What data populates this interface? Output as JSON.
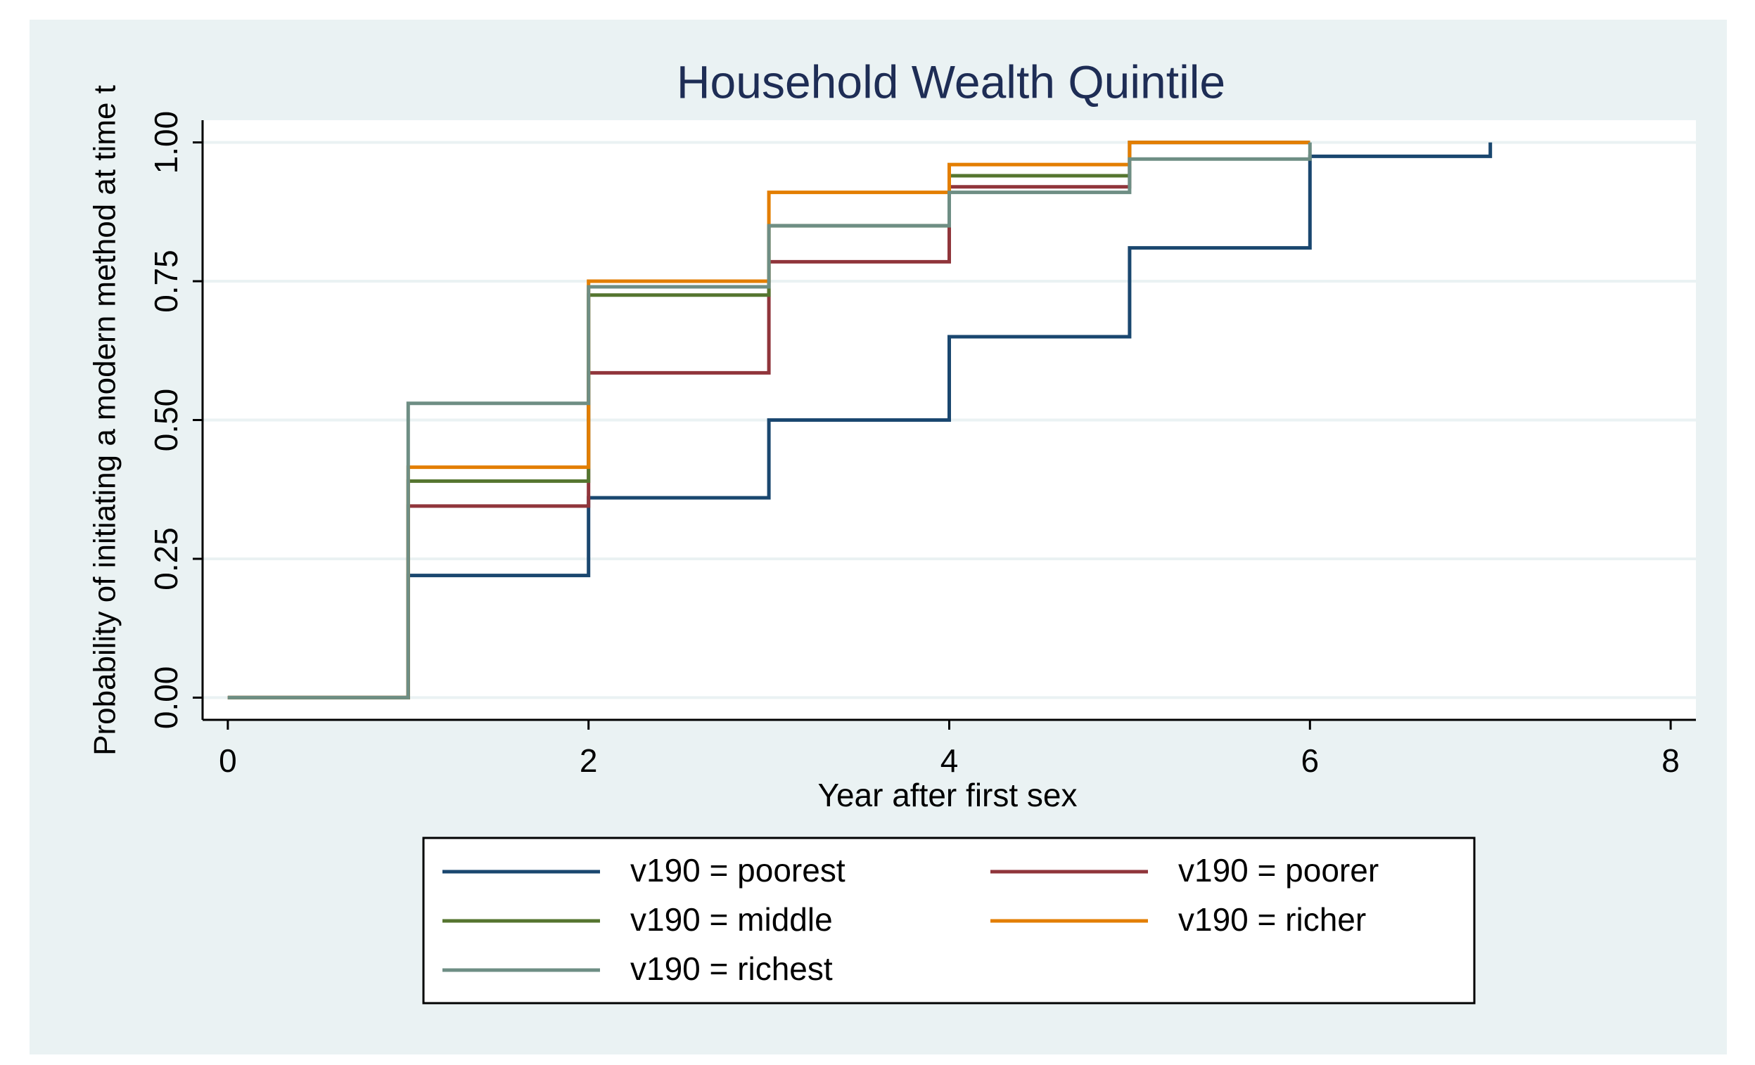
{
  "chart_data": {
    "type": "step",
    "title": "Household Wealth Quintile",
    "x_label": "Year after first sex",
    "y_label": "Probability of initiating a modern method at time t",
    "x": [
      0,
      1,
      2,
      3,
      4,
      5,
      6,
      7
    ],
    "series": [
      {
        "name": "v190 = poorest",
        "color": "#1a476f",
        "values": [
          0,
          0.22,
          0.36,
          0.5,
          0.65,
          0.81,
          0.975,
          1.0
        ]
      },
      {
        "name": "v190 = poorer",
        "color": "#90353b",
        "values": [
          0,
          0.345,
          0.585,
          0.785,
          0.92,
          1.0,
          1.0,
          null
        ]
      },
      {
        "name": "v190 = middle",
        "color": "#55752f",
        "values": [
          0,
          0.39,
          0.725,
          0.85,
          0.94,
          1.0,
          1.0,
          null
        ]
      },
      {
        "name": "v190 = richer",
        "color": "#e37e00",
        "values": [
          0,
          0.415,
          0.75,
          0.91,
          0.96,
          1.0,
          1.0,
          null
        ]
      },
      {
        "name": "v190 = richest",
        "color": "#6e8e84",
        "values": [
          0,
          0.53,
          0.74,
          0.85,
          0.91,
          0.97,
          1.0,
          null
        ]
      }
    ],
    "xlim": [
      -0.14,
      8.14
    ],
    "ylim": [
      -0.04,
      1.04
    ],
    "xticks": [
      0,
      2,
      4,
      6,
      8
    ],
    "yticks": [
      {
        "value": 0,
        "label": "0.00"
      },
      {
        "value": 0.25,
        "label": "0.25"
      },
      {
        "value": 0.5,
        "label": "0.50"
      },
      {
        "value": 0.75,
        "label": "0.75"
      },
      {
        "value": 1,
        "label": "1.00"
      }
    ],
    "grid": true,
    "legend": "bottom"
  }
}
